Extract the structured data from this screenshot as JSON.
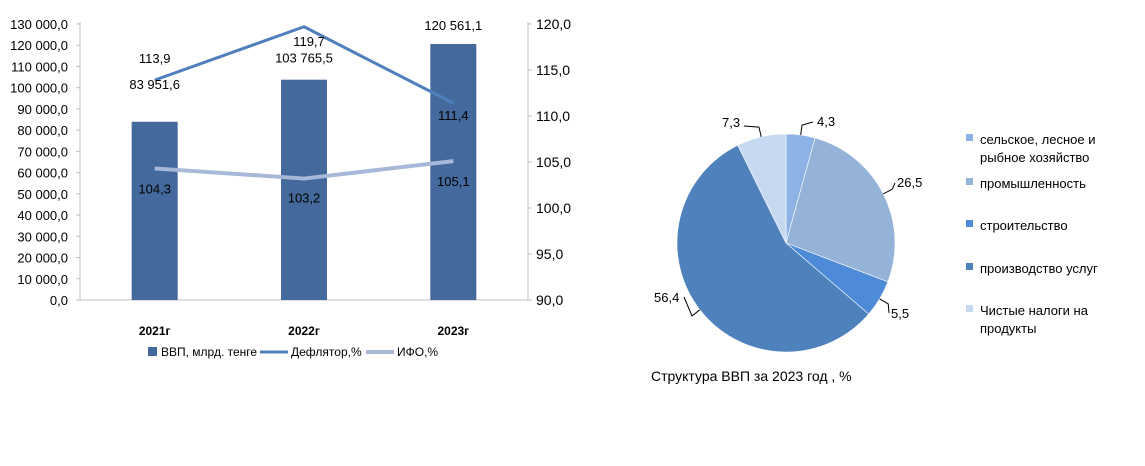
{
  "chart_data": [
    {
      "type": "bar+line",
      "categories": [
        "2021г",
        "2022г",
        "2023г"
      ],
      "series": [
        {
          "name": "ВВП, млрд. тенге",
          "kind": "bar",
          "axis": "left",
          "values": [
            83951.6,
            103765.5,
            120561.1
          ],
          "labels": [
            "83 951,6",
            "103 765,5",
            "120 561,1"
          ],
          "color": "#44699c"
        },
        {
          "name": "Дефлятор,%",
          "kind": "line",
          "axis": "right",
          "values": [
            113.9,
            119.7,
            111.4
          ],
          "labels": [
            "113,9",
            "119,7",
            "111,4"
          ],
          "color": "#4f7fbd"
        },
        {
          "name": "ИФО,%",
          "kind": "line",
          "axis": "right",
          "values": [
            104.3,
            103.2,
            105.1
          ],
          "labels": [
            "104,3",
            "103,2",
            "105,1"
          ],
          "color": "#a8b8d8"
        }
      ],
      "left_axis": {
        "ylim": [
          0,
          130000
        ],
        "ticks": [
          "0,0",
          "10 000,0",
          "20 000,0",
          "30 000,0",
          "40 000,0",
          "50 000,0",
          "60 000,0",
          "70 000,0",
          "80 000,0",
          "90 000,0",
          "100 000,0",
          "110 000,0",
          "120 000,0",
          "130 000,0"
        ]
      },
      "right_axis": {
        "ylim": [
          90,
          120
        ],
        "ticks": [
          "90,0",
          "95,0",
          "100,0",
          "105,0",
          "110,0",
          "115,0",
          "120,0"
        ]
      },
      "grid": false,
      "legend_position": "bottom"
    },
    {
      "type": "pie",
      "title": "Структура ВВП за 2023 год   , %",
      "slices": [
        {
          "name": "сельское, лесное и рыбное хозяйство",
          "name_lines": [
            "сельское, лесное и",
            "рыбное хозяйство"
          ],
          "value": 4.3,
          "label": "4,3",
          "color": "#8db3e6"
        },
        {
          "name": "промышленность",
          "name_lines": [
            "промышленность"
          ],
          "value": 26.5,
          "label": "26,5",
          "color": "#95b3d8"
        },
        {
          "name": "строительство",
          "name_lines": [
            "строительство"
          ],
          "value": 5.5,
          "label": "5,5",
          "color": "#4d8bd8"
        },
        {
          "name": "производство услуг",
          "name_lines": [
            "производство услуг"
          ],
          "value": 56.4,
          "label": "56,4",
          "color": "#4f81bd"
        },
        {
          "name": "Чистые налоги на продукты",
          "name_lines": [
            "Чистые налоги на",
            "продукты"
          ],
          "value": 7.3,
          "label": "7,3",
          "color": "#c6d9f1"
        }
      ],
      "legend_position": "right"
    }
  ]
}
